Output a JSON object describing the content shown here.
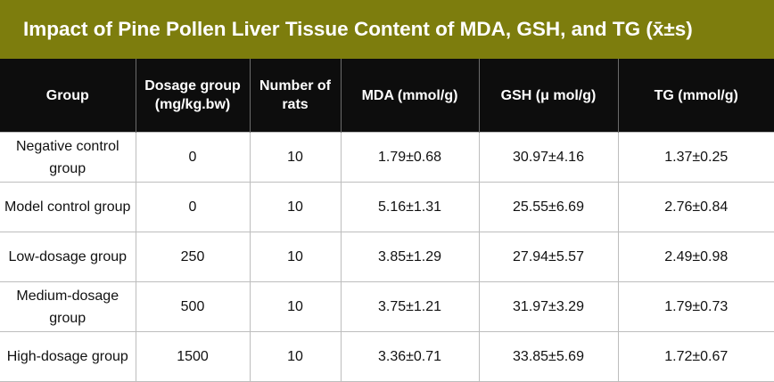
{
  "title": "Impact of Pine Pollen Liver Tissue Content of MDA, GSH, and TG (x̄±s)",
  "colors": {
    "title_bar": "#7d7d0d",
    "header_bg": "#0d0d0d",
    "header_text": "#ffffff",
    "grid": "#bdbdbd"
  },
  "columns": [
    "Group",
    "Dosage group (mg/kg.bw)",
    "Number of rats",
    "MDA (mmol/g)",
    "GSH (μ mol/g)",
    "TG (mmol/g)"
  ],
  "rows": [
    [
      "Negative control group",
      "0",
      "10",
      "1.79±0.68",
      "30.97±4.16",
      "1.37±0.25"
    ],
    [
      "Model control group",
      "0",
      "10",
      "5.16±1.31",
      "25.55±6.69",
      "2.76±0.84"
    ],
    [
      "Low-dosage group",
      "250",
      "10",
      "3.85±1.29",
      "27.94±5.57",
      "2.49±0.98"
    ],
    [
      "Medium-dosage group",
      "500",
      "10",
      "3.75±1.21",
      "31.97±3.29",
      "1.79±0.73"
    ],
    [
      "High-dosage group",
      "1500",
      "10",
      "3.36±0.71",
      "33.85±5.69",
      "1.72±0.67"
    ]
  ]
}
